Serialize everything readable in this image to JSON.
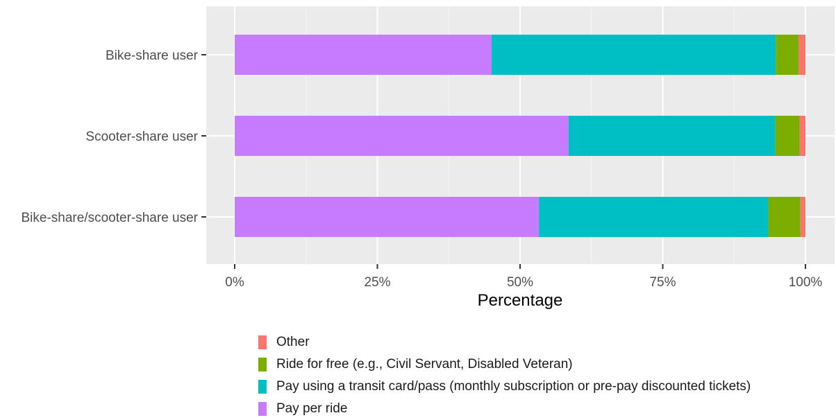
{
  "chart_data": {
    "type": "bar",
    "orientation": "horizontal",
    "stacked": true,
    "categories": [
      "Bike-share user",
      "Scooter-share user",
      "Bike-share/scooter-share user"
    ],
    "series": [
      {
        "name": "Pay per ride",
        "color": "#C77CFF",
        "values": [
          45,
          58.5,
          53.3
        ]
      },
      {
        "name": "Pay using a transit card/pass (monthly subscription or pre-pay discounted tickets)",
        "color": "#00BFC4",
        "values": [
          49.8,
          36.2,
          40.2
        ]
      },
      {
        "name": "Ride for free (e.g., Civil Servant, Disabled Veteran)",
        "color": "#7CAE00",
        "values": [
          4,
          4.3,
          5.6
        ]
      },
      {
        "name": "Other",
        "color": "#F8766D",
        "values": [
          1.2,
          1,
          0.9
        ]
      }
    ],
    "xlabel": "Percentage",
    "ylabel": "",
    "xlim": [
      0,
      100
    ],
    "xticks": [
      0,
      25,
      50,
      75,
      100
    ],
    "xtick_labels": [
      "0%",
      "25%",
      "50%",
      "75%",
      "100%"
    ],
    "grid": true,
    "legend_position": "bottom",
    "legend_order": [
      "Other",
      "Ride for free (e.g., Civil Servant, Disabled Veteran)",
      "Pay using a transit card/pass (monthly subscription or pre-pay discounted tickets)",
      "Pay per ride"
    ]
  },
  "colors": {
    "panel_background": "#EBEBEB",
    "grid_major": "#FFFFFF",
    "grid_minor": "#F5F5F5",
    "tick_text": "#4D4D4D"
  }
}
